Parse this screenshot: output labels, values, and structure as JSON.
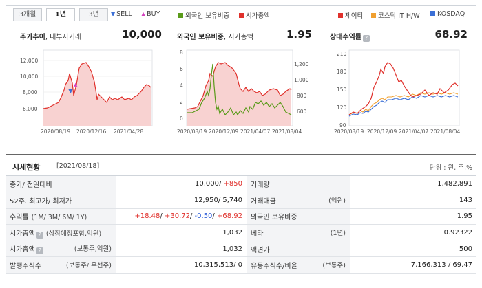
{
  "tabs": [
    {
      "label": "3개월"
    },
    {
      "label": "1년"
    },
    {
      "label": "3년"
    }
  ],
  "trade_legend": {
    "sell_label": "SELL",
    "buy_label": "BUY"
  },
  "legend_left": [
    {
      "label": "외국인 보유비중",
      "color": "#5a9b1a"
    },
    {
      "label": "시가총액",
      "color": "#e0312c"
    }
  ],
  "legend_right": [
    {
      "label": "제이티",
      "color": "#e0312c"
    },
    {
      "label": "코스닥 IT H/W",
      "color": "#f0a030"
    },
    {
      "label": "KOSDAQ",
      "color": "#3b6fd6"
    }
  ],
  "mini1": {
    "title_bold": "주가추이",
    "title_sub": ", 내부자거래",
    "value": "10,000",
    "y_ticks": [
      "12,000",
      "10,000",
      "8,000",
      "6,000"
    ],
    "x_ticks": [
      "2020/08/19",
      "2020/12/16",
      "2021/04/28"
    ]
  },
  "mini2": {
    "title_bold": "외국인 보유비중",
    "title_sub": ", 시가총액",
    "value": "1.95",
    "y_left_ticks": [
      "8",
      "6",
      "4",
      "2",
      "0"
    ],
    "y_right_ticks": [
      "1,200",
      "1,000",
      "800",
      "600"
    ],
    "x_ticks": [
      "2020/08/19",
      "2020/12/09",
      "2021/04/07",
      "2021/08/04"
    ]
  },
  "mini3": {
    "title_bold": "상대수익률",
    "value": "68.92",
    "y_ticks": [
      "210",
      "180",
      "150",
      "120",
      "90"
    ],
    "x_ticks": [
      "2020/08/19",
      "2020/12/09",
      "2021/04/07",
      "2021/08/04"
    ]
  },
  "section": {
    "title": "시세현황",
    "date": "[2021/08/18]",
    "unit": "단위 : 원, 주,%"
  },
  "rows": [
    {
      "l1": "종가/ 전일대비",
      "l1_unit": "",
      "v1_plain": "10,000/ ",
      "v1_red": "+850",
      "v1_blue": "",
      "l2": "거래량",
      "l2_unit": "",
      "v2": "1,482,891"
    },
    {
      "l1": "52주. 최고가/ 최저가",
      "l1_unit": "",
      "v1_plain": "12,950/ 5,740",
      "v1_red": "",
      "v1_blue": "",
      "l2": "거래대금",
      "l2_unit": "(억원)",
      "v2": "143"
    },
    {
      "l1": "수익률",
      "l1_unit": "(1M/ 3M/ 6M/ 1Y)",
      "l2": "외국인 보유비중",
      "l2_unit": "",
      "v2": "1.95"
    },
    {
      "l1": "시가총액",
      "l1_unit": "(상장예정포함,억원)",
      "v1_plain": "1,032",
      "v1_red": "",
      "v1_blue": "",
      "l2": "베타",
      "l2_unit": "(1년)",
      "v2": "0.92322"
    },
    {
      "l1": "시가총액",
      "l1_unit": "(보통주,억원)",
      "v1_plain": "1,032",
      "v1_red": "",
      "v1_blue": "",
      "l2": "액면가",
      "l2_unit": "",
      "v2": "500"
    },
    {
      "l1": "발행주식수",
      "l1_unit": "(보통주/ 우선주)",
      "v1_plain": "10,315,513/ 0",
      "v1_red": "",
      "v1_blue": "",
      "l2": "유동주식수/비율",
      "l2_unit": "(보통주)",
      "v2": "7,166,313 / 69.47"
    }
  ],
  "returns": {
    "m1": "+18.48",
    "m3": "+30.72",
    "m6": "-0.50",
    "y1": "+68.92"
  }
}
